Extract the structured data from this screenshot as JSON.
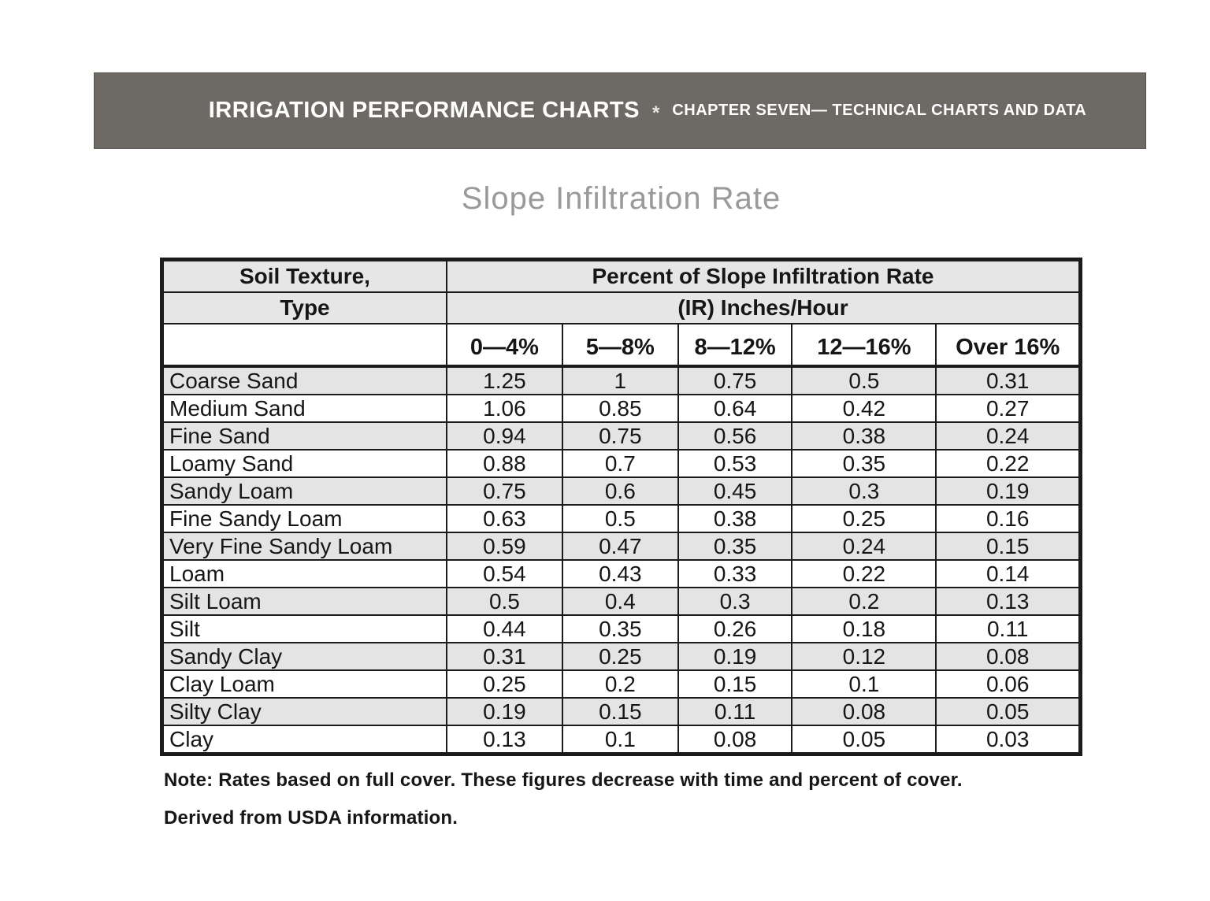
{
  "page": {
    "header_bar": {
      "title": "IRRIGATION PERFORMANCE CHARTS",
      "separator": "*",
      "chapter": "CHAPTER SEVEN— TECHNICAL CHARTS AND DATA"
    },
    "title": "Slope Infiltration Rate",
    "notes": {
      "note": "Note: Rates based on full cover. These figures decrease with time and percent of cover.",
      "source": "Derived from USDA information."
    }
  },
  "table": {
    "corner_header": [
      "Soil Texture,",
      "Type"
    ],
    "span_header": [
      "Percent of Slope Infiltration Rate",
      "(IR) Inches/Hour"
    ],
    "slope_columns": [
      "0—4%",
      "5—8%",
      "8—12%",
      "12—16%",
      "Over 16%"
    ],
    "rows": [
      {
        "texture": "Coarse Sand",
        "values": [
          "1.25",
          "1",
          "0.75",
          "0.5",
          "0.31"
        ]
      },
      {
        "texture": "Medium Sand",
        "values": [
          "1.06",
          "0.85",
          "0.64",
          "0.42",
          "0.27"
        ]
      },
      {
        "texture": "Fine Sand",
        "values": [
          "0.94",
          "0.75",
          "0.56",
          "0.38",
          "0.24"
        ]
      },
      {
        "texture": "Loamy Sand",
        "values": [
          "0.88",
          "0.7",
          "0.53",
          "0.35",
          "0.22"
        ]
      },
      {
        "texture": "Sandy Loam",
        "values": [
          "0.75",
          "0.6",
          "0.45",
          "0.3",
          "0.19"
        ]
      },
      {
        "texture": "Fine Sandy Loam",
        "values": [
          "0.63",
          "0.5",
          "0.38",
          "0.25",
          "0.16"
        ]
      },
      {
        "texture": "Very Fine Sandy Loam",
        "values": [
          "0.59",
          "0.47",
          "0.35",
          "0.24",
          "0.15"
        ]
      },
      {
        "texture": "Loam",
        "values": [
          "0.54",
          "0.43",
          "0.33",
          "0.22",
          "0.14"
        ]
      },
      {
        "texture": "Silt Loam",
        "values": [
          "0.5",
          "0.4",
          "0.3",
          "0.2",
          "0.13"
        ]
      },
      {
        "texture": "Silt",
        "values": [
          "0.44",
          "0.35",
          "0.26",
          "0.18",
          "0.11"
        ]
      },
      {
        "texture": "Sandy Clay",
        "values": [
          "0.31",
          "0.25",
          "0.19",
          "0.12",
          "0.08"
        ]
      },
      {
        "texture": "Clay Loam",
        "values": [
          "0.25",
          "0.2",
          "0.15",
          "0.1",
          "0.06"
        ]
      },
      {
        "texture": "Silty Clay",
        "values": [
          "0.19",
          "0.15",
          "0.11",
          "0.08",
          "0.05"
        ]
      },
      {
        "texture": "Clay",
        "values": [
          "0.13",
          "0.1",
          "0.08",
          "0.05",
          "0.03"
        ]
      }
    ]
  },
  "colors": {
    "band_bg": "#6d6a66",
    "band_border": "#56534f",
    "band_text": "#ffffff",
    "title_gray": "#9a9a9a",
    "header_shade": "#e6e6e6",
    "row_shade": "#e4e4e4",
    "table_border": "#1b1b1b",
    "text_ink": "#161616"
  }
}
